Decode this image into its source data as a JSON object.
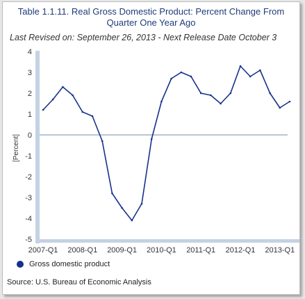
{
  "colors": {
    "series": "#17318a",
    "title": "#1f3b7a",
    "axis_band": "#c4d2e3",
    "zero_line": "#6f8fb3"
  },
  "chart_data": {
    "type": "line",
    "title": "Table 1.1.11. Real Gross Domestic Product: Percent Change From\nQuarter One Year Ago",
    "subtitle": "Last Revised on: September 26, 2013 - Next Release Date October 3",
    "xlabel": "",
    "ylabel": "[Percent]",
    "ylim": [
      -5,
      4
    ],
    "yticks": [
      "4",
      "3",
      "2",
      "1",
      "0",
      "-1",
      "-2",
      "-3",
      "-4",
      "-5"
    ],
    "xticks": [
      "2007-Q1",
      "2008-Q1",
      "2009-Q1",
      "2010-Q1",
      "2011-Q1",
      "2012-Q1",
      "2013-Q1"
    ],
    "x": [
      "2007-Q1",
      "2007-Q2",
      "2007-Q3",
      "2007-Q4",
      "2008-Q1",
      "2008-Q2",
      "2008-Q3",
      "2008-Q4",
      "2009-Q1",
      "2009-Q2",
      "2009-Q3",
      "2009-Q4",
      "2010-Q1",
      "2010-Q2",
      "2010-Q3",
      "2010-Q4",
      "2011-Q1",
      "2011-Q2",
      "2011-Q3",
      "2011-Q4",
      "2012-Q1",
      "2012-Q2",
      "2012-Q3",
      "2012-Q4",
      "2013-Q1",
      "2013-Q2"
    ],
    "series": [
      {
        "name": "Gross domestic product",
        "values": [
          1.2,
          1.7,
          2.3,
          1.9,
          1.1,
          0.9,
          -0.3,
          -2.8,
          -3.5,
          -4.1,
          -3.3,
          -0.2,
          1.6,
          2.7,
          3.0,
          2.8,
          2.0,
          1.9,
          1.5,
          2.0,
          3.3,
          2.8,
          3.1,
          2.0,
          1.3,
          1.6
        ]
      }
    ],
    "legend_position": "bottom-left",
    "grid": false
  },
  "source": "Source: U.S. Bureau of Economic Analysis"
}
